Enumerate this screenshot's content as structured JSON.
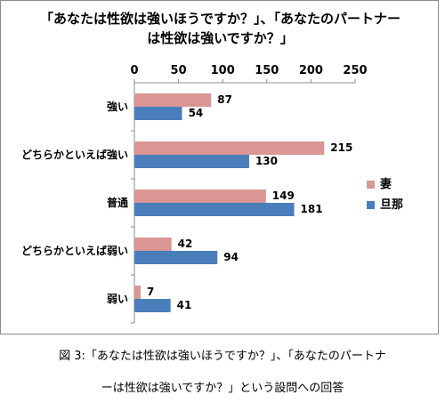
{
  "chart_data": {
    "type": "bar",
    "orientation": "horizontal",
    "title": "「あなたは性欲は強いほうですか？」、「あなたのパートナーは性欲は強いですか？」",
    "title_lines": [
      "「あなたは性欲は強いほうですか？」、「あなたのパートナー",
      "は性欲は強いですか？」"
    ],
    "categories": [
      "強い",
      "どちらかといえば強い",
      "普通",
      "どちらかといえば弱い",
      "弱い"
    ],
    "series": [
      {
        "name": "妻",
        "values": [
          87,
          215,
          149,
          42,
          7
        ],
        "color": "#d99694"
      },
      {
        "name": "旦那",
        "values": [
          54,
          130,
          181,
          94,
          41
        ],
        "color": "#4a7ebb"
      }
    ],
    "xlim": [
      0,
      250
    ],
    "xticks": [
      0,
      50,
      100,
      150,
      200,
      250
    ],
    "x_axis_position": "top",
    "grid": false,
    "legend": "right",
    "data_labels": true
  },
  "caption_lines": [
    "図 3:「あなたは性欲は強いほうですか？」、「あなたのパートナ",
    "ーは性欲は強いですか？」という設問への回答"
  ]
}
